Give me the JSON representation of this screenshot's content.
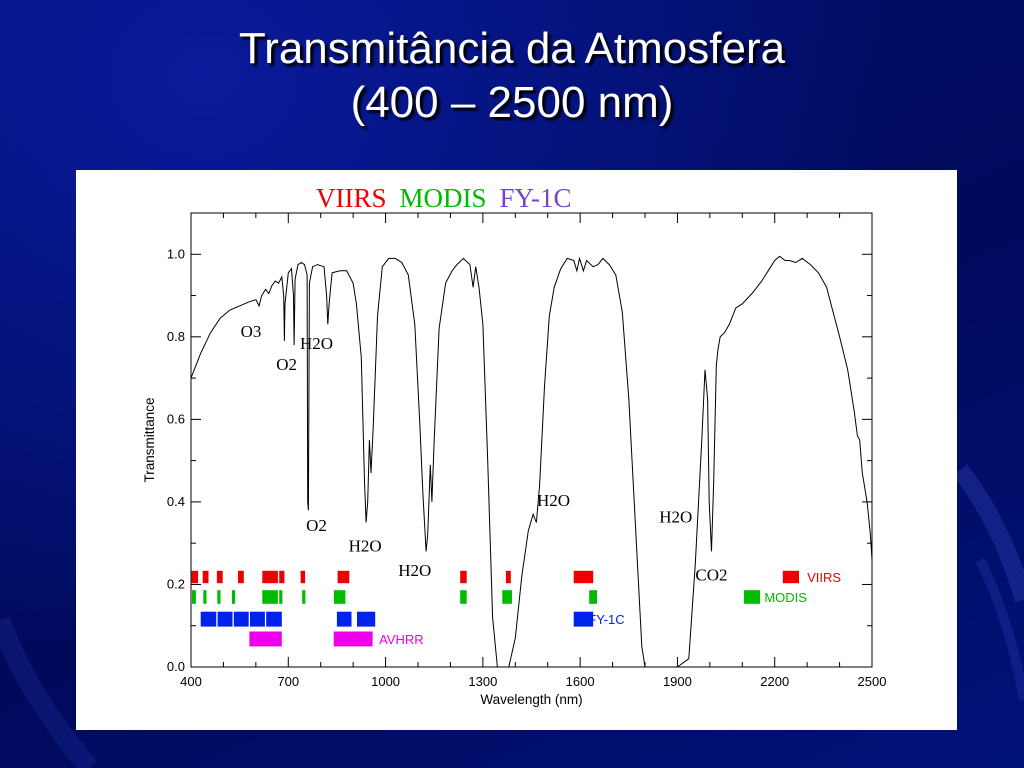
{
  "slide": {
    "title_line1": "Transmitância da Atmosfera",
    "title_line2": "(400 – 2500 nm)"
  },
  "colors": {
    "background": "#000c6e",
    "viirs": "#ee0000",
    "modis": "#00bb00",
    "fy1c": "#0022ee",
    "avhrr": "#ee00ee",
    "header_fy1c": "#7744cc"
  },
  "chart_data": {
    "type": "line",
    "xlabel": "Wavelength (nm)",
    "ylabel": "Transmittance",
    "xlim": [
      400,
      2500
    ],
    "ylim": [
      0,
      1.1
    ],
    "x_ticks": [
      400,
      700,
      1000,
      1300,
      1600,
      1900,
      2200,
      2500
    ],
    "y_ticks": [
      0.0,
      0.2,
      0.4,
      0.6,
      0.8,
      1.0
    ],
    "y_tick_labels": [
      "0.0",
      "0.2",
      "0.4",
      "0.6",
      "0.8",
      "1.0"
    ],
    "header": [
      {
        "text": "VIIRS",
        "color": "#ee0000"
      },
      {
        "text": "MODIS",
        "color": "#00bb00"
      },
      {
        "text": "FY-1C",
        "color": "#7744cc"
      }
    ],
    "series": [
      {
        "color": "#000000",
        "points": [
          [
            400,
            0.7
          ],
          [
            430,
            0.76
          ],
          [
            460,
            0.81
          ],
          [
            490,
            0.845
          ],
          [
            520,
            0.865
          ],
          [
            550,
            0.875
          ],
          [
            580,
            0.885
          ],
          [
            600,
            0.89
          ],
          [
            610,
            0.875
          ],
          [
            618,
            0.9
          ],
          [
            630,
            0.915
          ],
          [
            640,
            0.905
          ],
          [
            650,
            0.925
          ],
          [
            660,
            0.935
          ],
          [
            670,
            0.93
          ],
          [
            680,
            0.945
          ],
          [
            686,
            0.9
          ],
          [
            688,
            0.79
          ],
          [
            690,
            0.88
          ],
          [
            700,
            0.955
          ],
          [
            710,
            0.965
          ],
          [
            716,
            0.9
          ],
          [
            718,
            0.78
          ],
          [
            721,
            0.94
          ],
          [
            730,
            0.975
          ],
          [
            740,
            0.98
          ],
          [
            750,
            0.975
          ],
          [
            758,
            0.95
          ],
          [
            760,
            0.4
          ],
          [
            762,
            0.38
          ],
          [
            765,
            0.93
          ],
          [
            775,
            0.97
          ],
          [
            790,
            0.975
          ],
          [
            810,
            0.97
          ],
          [
            818,
            0.9
          ],
          [
            822,
            0.83
          ],
          [
            826,
            0.88
          ],
          [
            835,
            0.955
          ],
          [
            860,
            0.96
          ],
          [
            880,
            0.96
          ],
          [
            900,
            0.93
          ],
          [
            910,
            0.88
          ],
          [
            925,
            0.75
          ],
          [
            935,
            0.45
          ],
          [
            940,
            0.35
          ],
          [
            945,
            0.4
          ],
          [
            950,
            0.55
          ],
          [
            955,
            0.47
          ],
          [
            962,
            0.58
          ],
          [
            975,
            0.85
          ],
          [
            990,
            0.97
          ],
          [
            1010,
            0.99
          ],
          [
            1030,
            0.99
          ],
          [
            1050,
            0.98
          ],
          [
            1070,
            0.95
          ],
          [
            1090,
            0.83
          ],
          [
            1105,
            0.6
          ],
          [
            1115,
            0.42
          ],
          [
            1125,
            0.28
          ],
          [
            1130,
            0.32
          ],
          [
            1138,
            0.49
          ],
          [
            1143,
            0.4
          ],
          [
            1150,
            0.55
          ],
          [
            1165,
            0.82
          ],
          [
            1185,
            0.93
          ],
          [
            1205,
            0.96
          ],
          [
            1220,
            0.975
          ],
          [
            1240,
            0.99
          ],
          [
            1260,
            0.975
          ],
          [
            1270,
            0.92
          ],
          [
            1278,
            0.97
          ],
          [
            1288,
            0.92
          ],
          [
            1300,
            0.83
          ],
          [
            1315,
            0.5
          ],
          [
            1330,
            0.12
          ],
          [
            1345,
            0.0
          ],
          [
            1360,
            0.0
          ],
          [
            1380,
            0.0
          ],
          [
            1400,
            0.07
          ],
          [
            1420,
            0.22
          ],
          [
            1440,
            0.33
          ],
          [
            1455,
            0.37
          ],
          [
            1465,
            0.35
          ],
          [
            1475,
            0.44
          ],
          [
            1490,
            0.68
          ],
          [
            1505,
            0.85
          ],
          [
            1520,
            0.92
          ],
          [
            1540,
            0.965
          ],
          [
            1560,
            0.99
          ],
          [
            1580,
            0.985
          ],
          [
            1590,
            0.96
          ],
          [
            1598,
            0.99
          ],
          [
            1610,
            0.96
          ],
          [
            1620,
            0.985
          ],
          [
            1640,
            0.97
          ],
          [
            1655,
            0.975
          ],
          [
            1670,
            0.99
          ],
          [
            1690,
            0.975
          ],
          [
            1710,
            0.95
          ],
          [
            1730,
            0.86
          ],
          [
            1750,
            0.65
          ],
          [
            1770,
            0.35
          ],
          [
            1790,
            0.05
          ],
          [
            1800,
            0.0
          ],
          [
            1850,
            0.0
          ],
          [
            1900,
            0.0
          ],
          [
            1935,
            0.02
          ],
          [
            1955,
            0.25
          ],
          [
            1975,
            0.55
          ],
          [
            1985,
            0.72
          ],
          [
            1993,
            0.65
          ],
          [
            1998,
            0.4
          ],
          [
            2005,
            0.28
          ],
          [
            2012,
            0.45
          ],
          [
            2020,
            0.73
          ],
          [
            2025,
            0.77
          ],
          [
            2032,
            0.8
          ],
          [
            2045,
            0.81
          ],
          [
            2060,
            0.83
          ],
          [
            2080,
            0.87
          ],
          [
            2100,
            0.88
          ],
          [
            2130,
            0.905
          ],
          [
            2160,
            0.935
          ],
          [
            2180,
            0.96
          ],
          [
            2200,
            0.985
          ],
          [
            2215,
            0.995
          ],
          [
            2232,
            0.985
          ],
          [
            2245,
            0.985
          ],
          [
            2265,
            0.98
          ],
          [
            2285,
            0.99
          ],
          [
            2310,
            0.975
          ],
          [
            2335,
            0.955
          ],
          [
            2360,
            0.92
          ],
          [
            2380,
            0.86
          ],
          [
            2400,
            0.8
          ],
          [
            2425,
            0.72
          ],
          [
            2445,
            0.62
          ],
          [
            2455,
            0.56
          ],
          [
            2462,
            0.55
          ],
          [
            2470,
            0.47
          ],
          [
            2485,
            0.4
          ],
          [
            2495,
            0.32
          ],
          [
            2500,
            0.26
          ]
        ]
      }
    ],
    "annotations": [
      {
        "text": "O3",
        "x": 585,
        "y": 0.8
      },
      {
        "text": "O2",
        "x": 695,
        "y": 0.72
      },
      {
        "text": "H2O",
        "x": 787,
        "y": 0.77
      },
      {
        "text": "O2",
        "x": 787,
        "y": 0.33
      },
      {
        "text": "H2O",
        "x": 937,
        "y": 0.28
      },
      {
        "text": "H2O",
        "x": 1090,
        "y": 0.22
      },
      {
        "text": "H2O",
        "x": 1518,
        "y": 0.39
      },
      {
        "text": "H2O",
        "x": 1895,
        "y": 0.35
      },
      {
        "text": "CO2",
        "x": 2005,
        "y": 0.21
      }
    ],
    "bands": [
      {
        "name": "VIIRS",
        "color": "#ee0000",
        "y_range": [
          0.203,
          0.233
        ],
        "intervals": [
          [
            402,
            422
          ],
          [
            436,
            454
          ],
          [
            480,
            498
          ],
          [
            545,
            563
          ],
          [
            620,
            668
          ],
          [
            672,
            688
          ],
          [
            738,
            752
          ],
          [
            852,
            888
          ],
          [
            1230,
            1250
          ],
          [
            1371,
            1386
          ],
          [
            1580,
            1640
          ],
          [
            2225,
            2275
          ]
        ]
      },
      {
        "name": "MODIS",
        "color": "#00bb00",
        "y_range": [
          0.153,
          0.186
        ],
        "intervals": [
          [
            403,
            415
          ],
          [
            438,
            448
          ],
          [
            481,
            491
          ],
          [
            526,
            536
          ],
          [
            620,
            668
          ],
          [
            672,
            682
          ],
          [
            743,
            753
          ],
          [
            841,
            876
          ],
          [
            1230,
            1250
          ],
          [
            1360,
            1390
          ],
          [
            1628,
            1652
          ],
          [
            2105,
            2155
          ]
        ]
      },
      {
        "name": "FY-1C",
        "color": "#0022ee",
        "y_range": [
          0.098,
          0.134
        ],
        "intervals": [
          [
            430,
            478
          ],
          [
            482,
            528
          ],
          [
            532,
            578
          ],
          [
            582,
            628
          ],
          [
            632,
            680
          ],
          [
            850,
            895
          ],
          [
            912,
            968
          ],
          [
            1580,
            1640
          ]
        ]
      },
      {
        "name": "AVHRR",
        "color": "#ee00ee",
        "y_range": [
          0.05,
          0.086
        ],
        "intervals": [
          [
            580,
            680
          ],
          [
            840,
            960
          ]
        ]
      }
    ],
    "legend": [
      {
        "text": "VIIRS",
        "color": "#ee0000",
        "position": "right"
      },
      {
        "text": "MODIS",
        "color": "#00bb00",
        "position": "right"
      },
      {
        "text": "FY-1C",
        "color": "#0022ee",
        "position": "right"
      },
      {
        "text": "AVHRR",
        "color": "#ee00ee",
        "position": "center"
      }
    ]
  }
}
